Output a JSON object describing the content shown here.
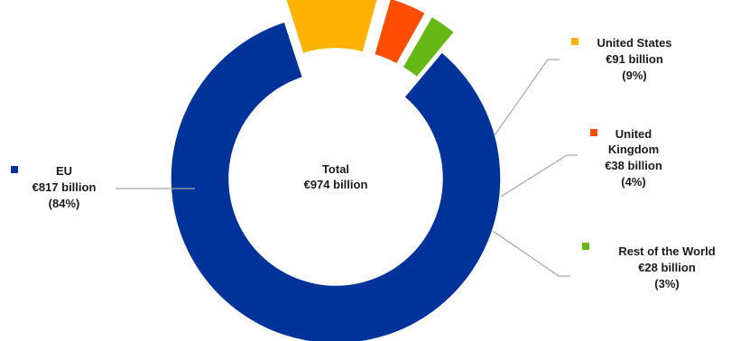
{
  "chart_data": {
    "type": "pie",
    "variant": "donut",
    "center_label": [
      "Total",
      "€974 billion"
    ],
    "slices": [
      {
        "name": "EU",
        "value_text": "€817 billion",
        "pct_text": "(84%)",
        "value": 817,
        "color": "#003399"
      },
      {
        "name": "United States",
        "value_text": "€91 billion",
        "pct_text": "(9%)",
        "value": 91,
        "color": "#FFB300"
      },
      {
        "name": "United Kingdom",
        "value_text": "€38 billion",
        "pct_text": "(4%)",
        "value": 38,
        "color": "#FF4D00"
      },
      {
        "name": "Rest of the World",
        "value_text": "€28 billion",
        "pct_text": "(3%)",
        "value": 28,
        "color": "#66B814"
      }
    ],
    "legend": "callouts"
  }
}
